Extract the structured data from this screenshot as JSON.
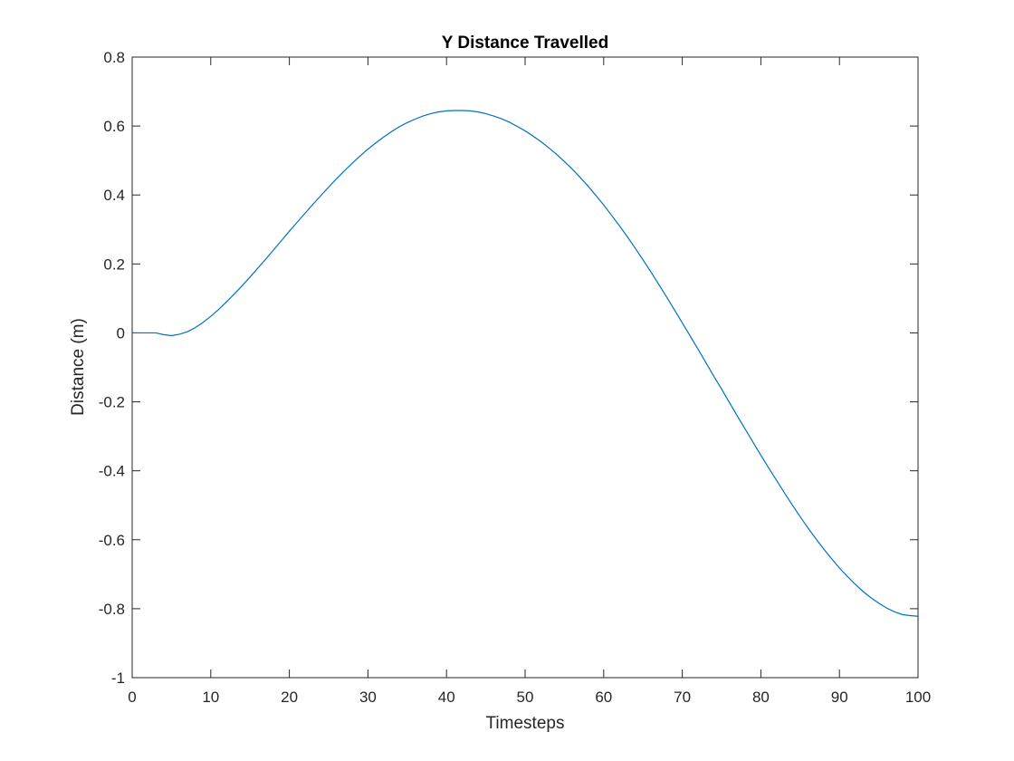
{
  "chart_data": {
    "type": "line",
    "title": "Y Distance Travelled",
    "xlabel": "Timesteps",
    "ylabel": "Distance (m)",
    "xlim": [
      0,
      100
    ],
    "ylim": [
      -1,
      0.8
    ],
    "xticks": [
      0,
      10,
      20,
      30,
      40,
      50,
      60,
      70,
      80,
      90,
      100
    ],
    "yticks": [
      -1,
      -0.8,
      -0.6,
      -0.4,
      -0.2,
      0,
      0.2,
      0.4,
      0.6,
      0.8
    ],
    "xtick_labels": [
      "0",
      "10",
      "20",
      "30",
      "40",
      "50",
      "60",
      "70",
      "80",
      "90",
      "100"
    ],
    "ytick_labels": [
      "-1",
      "-0.8",
      "-0.6",
      "-0.4",
      "-0.2",
      "0",
      "0.2",
      "0.4",
      "0.6",
      "0.8"
    ],
    "grid": false,
    "line_color": "#0072BD",
    "series": [
      {
        "x": [
          0,
          1,
          2,
          3,
          4,
          5,
          6,
          7,
          8,
          9,
          10,
          11,
          12,
          13,
          14,
          15,
          16,
          17,
          18,
          19,
          20,
          21,
          22,
          23,
          24,
          25,
          26,
          27,
          28,
          29,
          30,
          31,
          32,
          33,
          34,
          35,
          36,
          37,
          38,
          39,
          40,
          41,
          42,
          43,
          44,
          45,
          46,
          47,
          48,
          49,
          50,
          51,
          52,
          53,
          54,
          55,
          56,
          57,
          58,
          59,
          60,
          61,
          62,
          63,
          64,
          65,
          66,
          67,
          68,
          69,
          70,
          71,
          72,
          73,
          74,
          75,
          76,
          77,
          78,
          79,
          80,
          81,
          82,
          83,
          84,
          85,
          86,
          87,
          88,
          89,
          90,
          91,
          92,
          93,
          94,
          95,
          96,
          97,
          98,
          99,
          100
        ],
        "values": [
          0,
          0,
          0,
          0,
          -0.005,
          -0.008,
          -0.004,
          0.003,
          0.015,
          0.03,
          0.048,
          0.068,
          0.09,
          0.113,
          0.137,
          0.162,
          0.188,
          0.214,
          0.241,
          0.268,
          0.295,
          0.321,
          0.347,
          0.373,
          0.398,
          0.423,
          0.447,
          0.47,
          0.492,
          0.513,
          0.533,
          0.551,
          0.568,
          0.584,
          0.598,
          0.61,
          0.62,
          0.629,
          0.636,
          0.641,
          0.644,
          0.645,
          0.645,
          0.644,
          0.641,
          0.636,
          0.629,
          0.621,
          0.611,
          0.599,
          0.586,
          0.571,
          0.555,
          0.537,
          0.518,
          0.497,
          0.475,
          0.451,
          0.426,
          0.399,
          0.371,
          0.341,
          0.311,
          0.279,
          0.246,
          0.212,
          0.177,
          0.141,
          0.104,
          0.067,
          0.029,
          -0.009,
          -0.047,
          -0.086,
          -0.125,
          -0.163,
          -0.202,
          -0.241,
          -0.279,
          -0.317,
          -0.355,
          -0.392,
          -0.428,
          -0.464,
          -0.499,
          -0.533,
          -0.566,
          -0.597,
          -0.627,
          -0.655,
          -0.682,
          -0.706,
          -0.729,
          -0.75,
          -0.768,
          -0.784,
          -0.798,
          -0.809,
          -0.817,
          -0.82,
          -0.822
        ]
      }
    ]
  }
}
